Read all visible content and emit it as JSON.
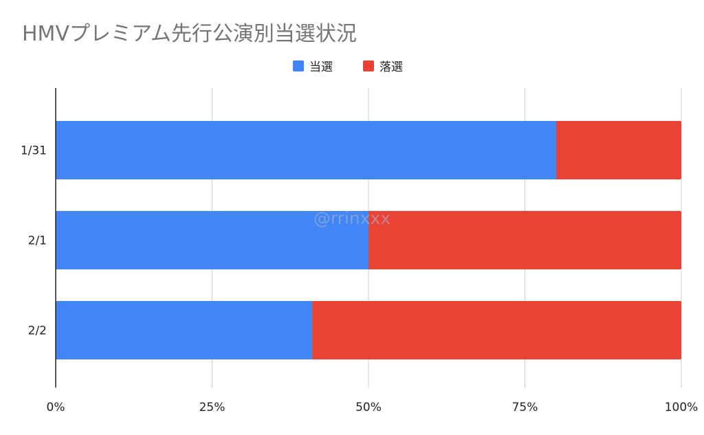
{
  "chart_data": {
    "type": "bar",
    "orientation": "horizontal",
    "stacked": "percent",
    "title": "HMVプレミアム先行公演別当選状況",
    "categories": [
      "1/31",
      "2/1",
      "2/2"
    ],
    "series": [
      {
        "name": "当選",
        "color": "#4285F4",
        "values": [
          0.8,
          0.5,
          0.41
        ]
      },
      {
        "name": "落選",
        "color": "#EA4335",
        "values": [
          0.2,
          0.5,
          0.59
        ]
      }
    ],
    "xlim": [
      0,
      1
    ],
    "xticks": [
      "0%",
      "25%",
      "50%",
      "75%",
      "100%"
    ],
    "xlabel": "",
    "ylabel": "",
    "grid": true,
    "legend_position": "top-center",
    "watermark": "@rrinxxx"
  }
}
